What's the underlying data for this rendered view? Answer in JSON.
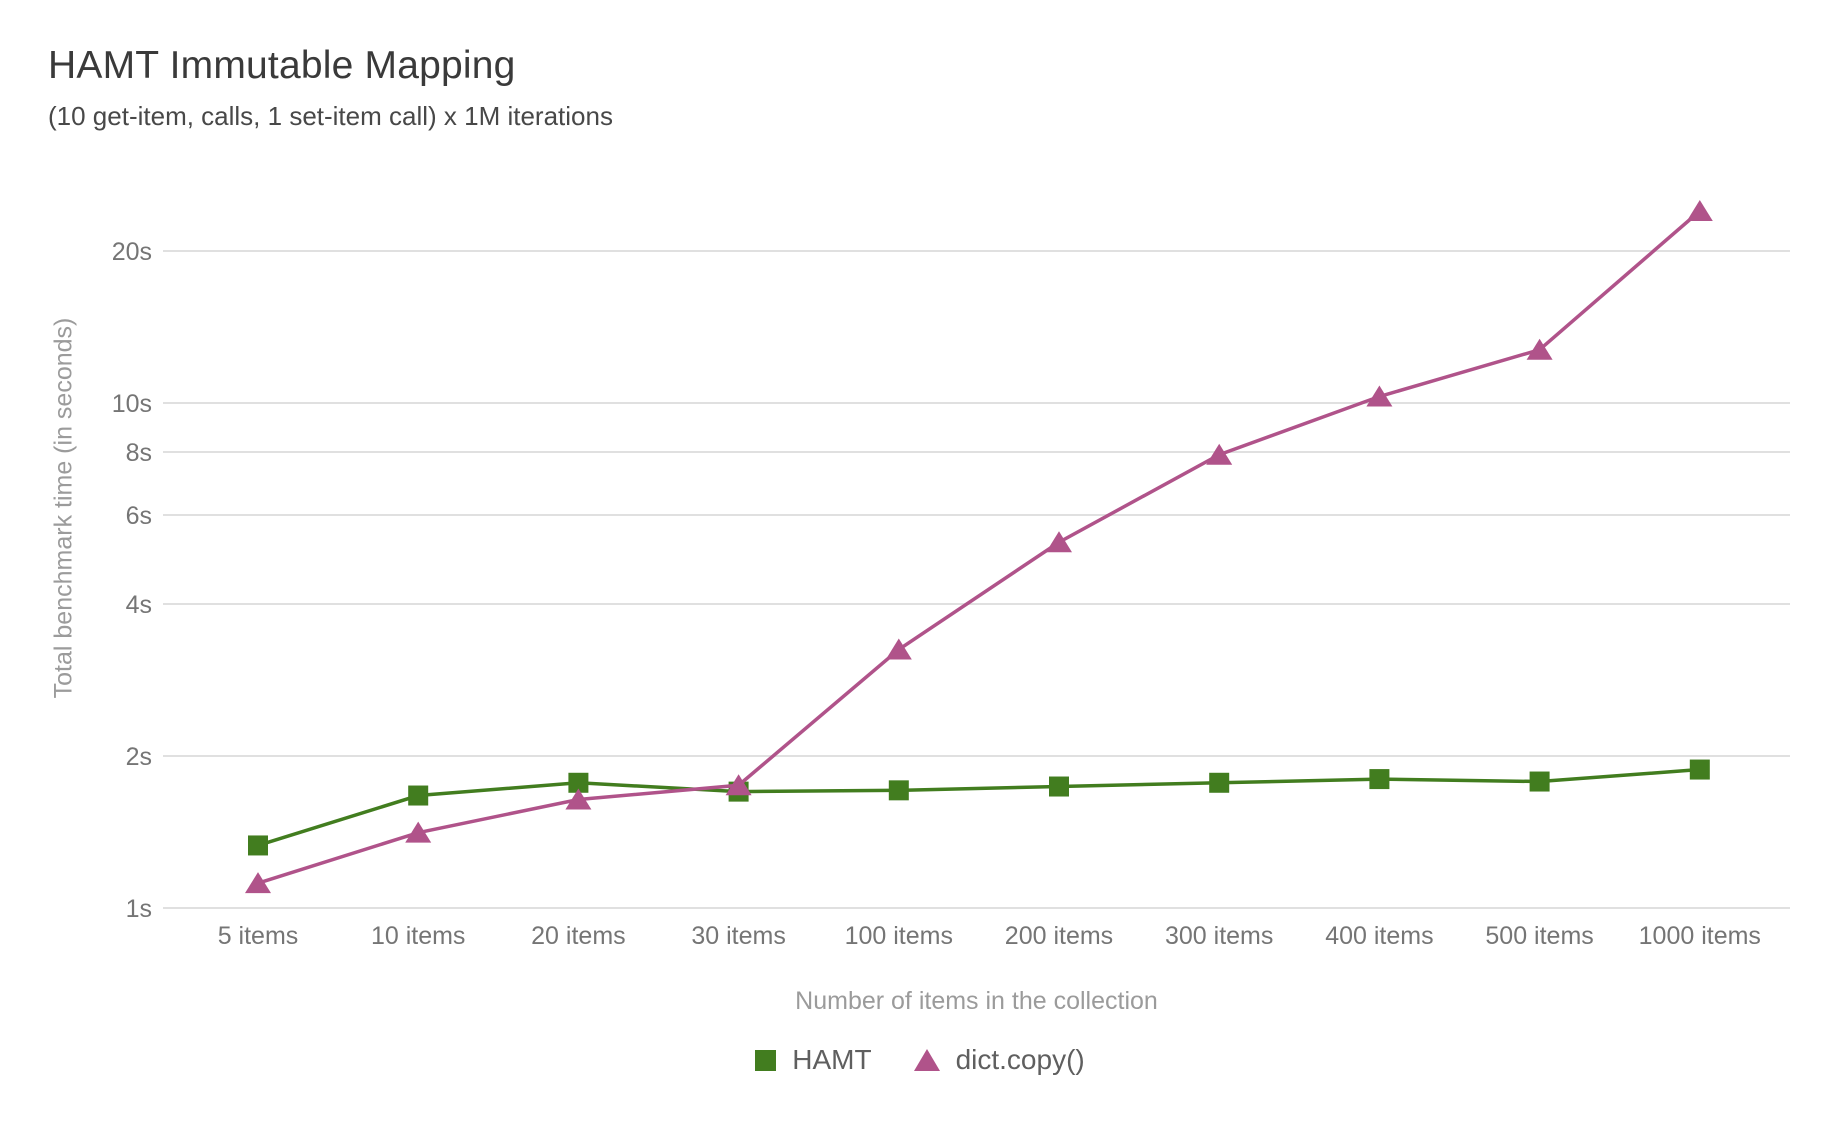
{
  "header": {
    "title": "HAMT Immutable Mapping",
    "subtitle": "(10 get-item, calls, 1 set-item call) x 1M iterations"
  },
  "chart_data": {
    "type": "line",
    "title": "HAMT Immutable Mapping",
    "subtitle": "(10 get-item, calls, 1 set-item call) x 1M iterations",
    "x_axis_title": "Number of items in the collection",
    "y_axis_title": "Total benchmark time (in seconds)",
    "categories": [
      "5 items",
      "10 items",
      "20 items",
      "30 items",
      "100 items",
      "200 items",
      "300 items",
      "400 items",
      "500 items",
      "1000 items"
    ],
    "series": [
      {
        "name": "HAMT",
        "color": "#427d1f",
        "marker": "square",
        "values": [
          1.33,
          1.67,
          1.77,
          1.7,
          1.71,
          1.74,
          1.77,
          1.8,
          1.78,
          1.88
        ]
      },
      {
        "name": "dict.copy()",
        "color": "#b0538a",
        "marker": "triangle",
        "values": [
          1.12,
          1.41,
          1.64,
          1.75,
          3.25,
          5.3,
          7.9,
          10.3,
          12.75,
          24.0
        ]
      }
    ],
    "yscale": "log",
    "yticks": [
      {
        "value": 1,
        "label": "1s"
      },
      {
        "value": 2,
        "label": "2s"
      },
      {
        "value": 4,
        "label": "4s"
      },
      {
        "value": 6,
        "label": "6s"
      },
      {
        "value": 8,
        "label": "8s"
      },
      {
        "value": 10,
        "label": "10s"
      },
      {
        "value": 20,
        "label": "20s"
      }
    ],
    "ylim": [
      1,
      26
    ],
    "grid": true,
    "legend_position": "bottom",
    "colors": {
      "grid": "#e0e0e0",
      "tick_label": "#757575",
      "axis_title": "#9b9b9b",
      "title": "#3a3a3a",
      "legend_label": "#5f5f5f"
    }
  }
}
